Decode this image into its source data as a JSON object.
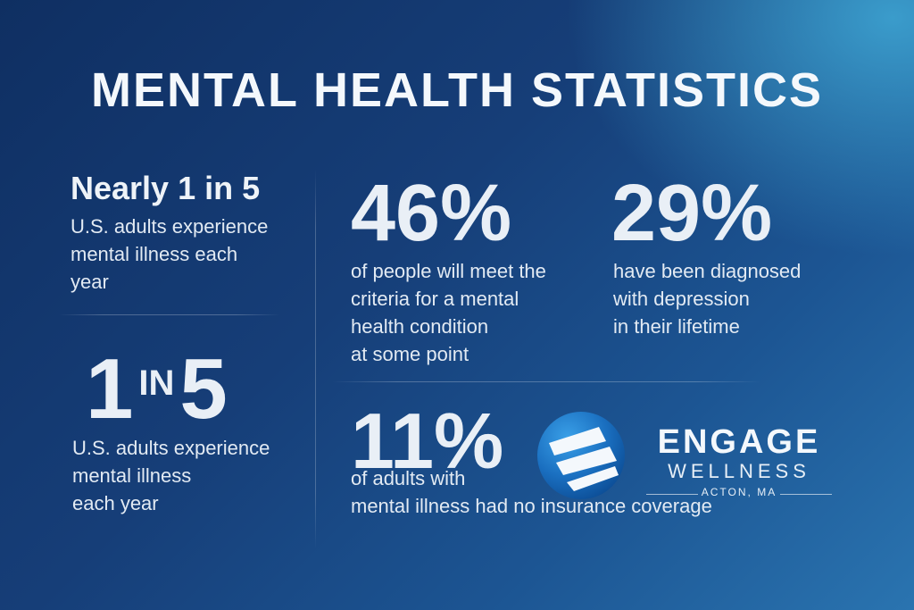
{
  "title": "MENTAL HEALTH STATISTICS",
  "stats": {
    "nearly": {
      "headline": "Nearly 1 in 5",
      "description": "U.S. adults experience\nmental illness each\nyear"
    },
    "one_in_five": {
      "num_left": "1",
      "in_text": "IN",
      "num_right": "5",
      "description": "U.S. adults experience\nmental illness\neach year"
    },
    "pct_46": {
      "value": "46%",
      "description": "of people will meet the\ncriteria for a mental\nhealth condition\nat some point"
    },
    "pct_29": {
      "value": "29%",
      "description": "have been diagnosed\nwith depression\nin their lifetime"
    },
    "pct_11": {
      "value": "11%",
      "description": "of adults with\nmental illness had no insurance coverage"
    }
  },
  "brand": {
    "name": "ENGAGE",
    "sub": "WELLNESS",
    "location": "ACTON, MA"
  },
  "colors": {
    "background_dark": "#0f2f62",
    "background_light": "#2a74b0",
    "logo_blue": "#1d78c8",
    "text": "#ffffff"
  }
}
